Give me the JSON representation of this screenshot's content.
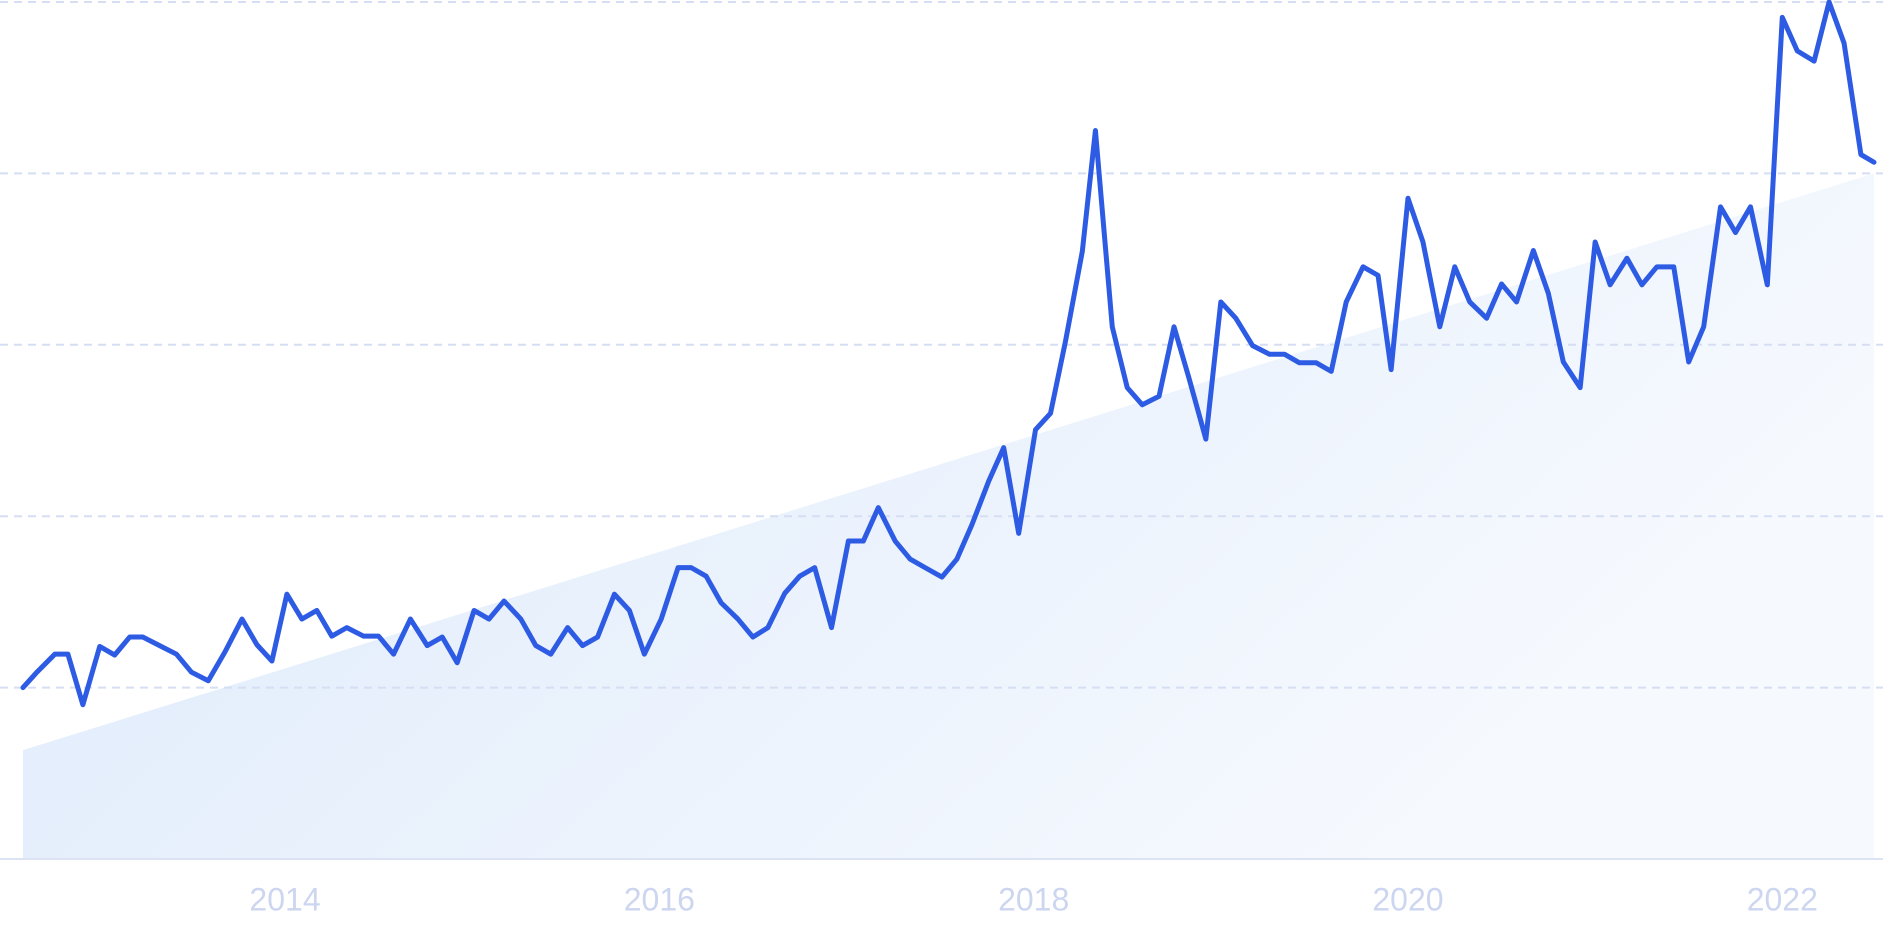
{
  "chart_data": {
    "type": "line",
    "x": [
      2012.6,
      2012.67,
      2012.77,
      2012.84,
      2012.92,
      2013.01,
      2013.09,
      2013.17,
      2013.24,
      2013.33,
      2013.42,
      2013.5,
      2013.59,
      2013.68,
      2013.77,
      2013.85,
      2013.93,
      2014.01,
      2014.09,
      2014.17,
      2014.25,
      2014.33,
      2014.42,
      2014.5,
      2014.58,
      2014.67,
      2014.76,
      2014.84,
      2014.92,
      2015.01,
      2015.09,
      2015.17,
      2015.26,
      2015.34,
      2015.42,
      2015.51,
      2015.59,
      2015.67,
      2015.76,
      2015.84,
      2015.92,
      2016.01,
      2016.1,
      2016.17,
      2016.25,
      2016.33,
      2016.42,
      2016.5,
      2016.58,
      2016.67,
      2016.75,
      2016.83,
      2016.92,
      2017.01,
      2017.09,
      2017.17,
      2017.26,
      2017.34,
      2017.42,
      2017.51,
      2017.59,
      2017.67,
      2017.76,
      2017.84,
      2017.92,
      2018.01,
      2018.09,
      2018.17,
      2018.26,
      2018.33,
      2018.42,
      2018.5,
      2018.58,
      2018.67,
      2018.75,
      2018.83,
      2018.92,
      2019.0,
      2019.08,
      2019.17,
      2019.26,
      2019.34,
      2019.42,
      2019.51,
      2019.59,
      2019.67,
      2019.76,
      2019.84,
      2019.91,
      2020.0,
      2020.08,
      2020.17,
      2020.25,
      2020.33,
      2020.42,
      2020.5,
      2020.58,
      2020.67,
      2020.75,
      2020.83,
      2020.92,
      2021.0,
      2021.08,
      2021.17,
      2021.25,
      2021.33,
      2021.42,
      2021.5,
      2021.58,
      2021.67,
      2021.75,
      2021.83,
      2021.92,
      2022.0,
      2022.08,
      2022.17,
      2022.25,
      2022.33,
      2022.42,
      2022.49
    ],
    "values": [
      20.0,
      21.7,
      23.9,
      23.9,
      18.0,
      24.8,
      23.8,
      25.9,
      25.9,
      24.9,
      23.9,
      21.8,
      20.8,
      24.2,
      28.0,
      25.0,
      23.1,
      30.9,
      28.0,
      29.0,
      26.0,
      27.0,
      26.0,
      26.0,
      23.9,
      28.0,
      24.9,
      25.9,
      22.9,
      29.0,
      28.0,
      30.1,
      28.0,
      24.9,
      23.9,
      27.0,
      24.9,
      25.9,
      30.9,
      29.0,
      23.9,
      28.0,
      34.0,
      34.0,
      33.0,
      29.9,
      28.0,
      25.9,
      27.0,
      31.0,
      33.0,
      34.0,
      27.0,
      37.1,
      37.1,
      41.0,
      37.1,
      35.0,
      34.0,
      32.9,
      35.0,
      39.0,
      44.1,
      48.0,
      38.0,
      50.1,
      52.0,
      60.4,
      70.9,
      85.0,
      62.1,
      55.0,
      53.0,
      54.0,
      62.1,
      56.1,
      49.0,
      65.0,
      63.1,
      59.9,
      58.9,
      58.9,
      57.9,
      57.9,
      56.9,
      65.0,
      69.1,
      68.1,
      57.1,
      77.1,
      72.0,
      62.1,
      69.1,
      65.0,
      63.1,
      67.1,
      65.0,
      71.0,
      66.0,
      58.0,
      55.0,
      72.0,
      67.0,
      70.1,
      67.0,
      69.1,
      69.1,
      58.0,
      62.1,
      76.1,
      73.1,
      76.1,
      67.0,
      98.2,
      94.3,
      93.1,
      100.0,
      95.2,
      82.2,
      81.3
    ],
    "color": "#2d5be3",
    "trend": {
      "x": [
        2012.6,
        2022.49
      ],
      "values": [
        12.7,
        80.0
      ],
      "color": "#dce9fb"
    },
    "xlim": [
      2012.6,
      2022.49
    ],
    "xticks": [
      2014,
      2016,
      2018,
      2020,
      2022
    ],
    "ylim": [
      0,
      100
    ],
    "yticks": [
      0,
      20,
      40,
      60,
      80,
      100
    ],
    "grid": true
  }
}
